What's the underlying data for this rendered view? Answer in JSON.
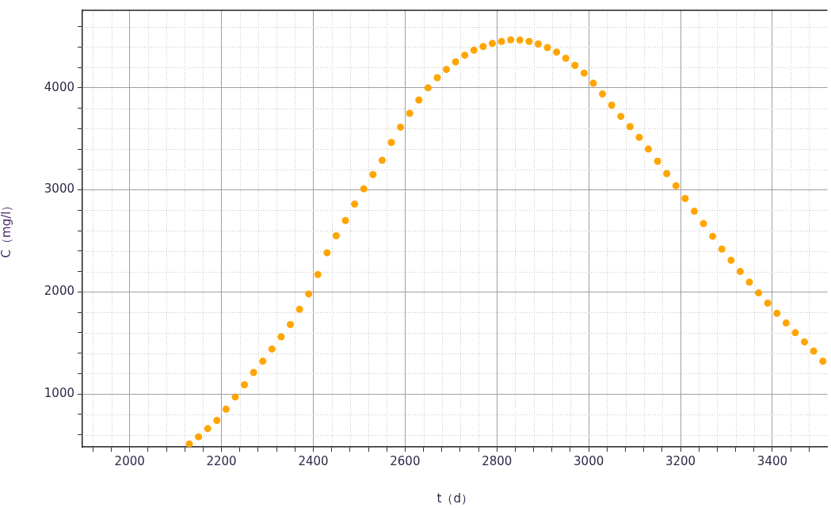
{
  "chart_data": {
    "type": "scatter",
    "xlabel": "t（d）",
    "ylabel": "C（mg/l）",
    "marker": "circle",
    "grid": true,
    "legend": false,
    "xlim": [
      1897,
      3520
    ],
    "ylim": [
      480,
      4760
    ],
    "xticks": [
      {
        "value": 1920,
        "label": null
      },
      {
        "value": 1960,
        "label": null
      },
      2000,
      {
        "value": 2040,
        "label": null
      },
      {
        "value": 2080,
        "label": null
      },
      {
        "value": 2120,
        "label": null
      },
      {
        "value": 2160,
        "label": null
      },
      2200,
      {
        "value": 2240,
        "label": null
      },
      {
        "value": 2280,
        "label": null
      },
      {
        "value": 2320,
        "label": null
      },
      {
        "value": 2360,
        "label": null
      },
      2400,
      {
        "value": 2440,
        "label": null
      },
      {
        "value": 2480,
        "label": null
      },
      {
        "value": 2520,
        "label": null
      },
      {
        "value": 2560,
        "label": null
      },
      2600,
      {
        "value": 2640,
        "label": null
      },
      {
        "value": 2680,
        "label": null
      },
      {
        "value": 2720,
        "label": null
      },
      {
        "value": 2760,
        "label": null
      },
      2800,
      {
        "value": 2840,
        "label": null
      },
      {
        "value": 2880,
        "label": null
      },
      {
        "value": 2920,
        "label": null
      },
      {
        "value": 2960,
        "label": null
      },
      3000,
      {
        "value": 3040,
        "label": null
      },
      {
        "value": 3080,
        "label": null
      },
      {
        "value": 3120,
        "label": null
      },
      {
        "value": 3160,
        "label": null
      },
      3200,
      {
        "value": 3240,
        "label": null
      },
      {
        "value": 3280,
        "label": null
      },
      {
        "value": 3320,
        "label": null
      },
      {
        "value": 3360,
        "label": null
      },
      3400,
      {
        "value": 3440,
        "label": null
      },
      {
        "value": 3480,
        "label": null
      }
    ],
    "yticks": [
      {
        "value": 600,
        "label": null
      },
      {
        "value": 800,
        "label": null
      },
      1000,
      {
        "value": 1200,
        "label": null
      },
      {
        "value": 1400,
        "label": null
      },
      {
        "value": 1600,
        "label": null
      },
      {
        "value": 1800,
        "label": null
      },
      2000,
      {
        "value": 2200,
        "label": null
      },
      {
        "value": 2400,
        "label": null
      },
      {
        "value": 2600,
        "label": null
      },
      {
        "value": 2800,
        "label": null
      },
      3000,
      {
        "value": 3200,
        "label": null
      },
      {
        "value": 3400,
        "label": null
      },
      {
        "value": 3600,
        "label": null
      },
      {
        "value": 3800,
        "label": null
      },
      4000,
      {
        "value": 4200,
        "label": null
      },
      {
        "value": 4400,
        "label": null
      },
      {
        "value": 4600,
        "label": null
      }
    ],
    "series": [
      {
        "color": "#ffa500",
        "x": [
          2130,
          2150,
          2170,
          2190,
          2210,
          2230,
          2250,
          2270,
          2290,
          2310,
          2330,
          2350,
          2370,
          2390,
          2410,
          2430,
          2450,
          2470,
          2490,
          2510,
          2530,
          2550,
          2570,
          2590,
          2610,
          2630,
          2650,
          2670,
          2690,
          2710,
          2730,
          2750,
          2770,
          2790,
          2810,
          2830,
          2850,
          2870,
          2890,
          2910,
          2930,
          2950,
          2970,
          2990,
          3010,
          3030,
          3050,
          3070,
          3090,
          3110,
          3130,
          3150,
          3170,
          3190,
          3210,
          3230,
          3250,
          3270,
          3290,
          3310,
          3330,
          3350,
          3370,
          3390,
          3410,
          3430,
          3450,
          3470,
          3490,
          3510
        ],
        "values": [
          510,
          580,
          660,
          740,
          850,
          970,
          1090,
          1210,
          1320,
          1440,
          1560,
          1680,
          1830,
          1980,
          2170,
          2384,
          2550,
          2700,
          2860,
          3010,
          3150,
          3290,
          3465,
          3615,
          3750,
          3880,
          4000,
          4100,
          4180,
          4255,
          4320,
          4370,
          4405,
          4435,
          4455,
          4470,
          4468,
          4455,
          4430,
          4395,
          4350,
          4290,
          4220,
          4145,
          4045,
          3940,
          3830,
          3720,
          3620,
          3515,
          3400,
          3280,
          3160,
          3040,
          2915,
          2790,
          2670,
          2545,
          2420,
          2310,
          2200,
          2095,
          1990,
          1890,
          1790,
          1695,
          1600,
          1510,
          1420,
          1320
        ]
      }
    ]
  }
}
